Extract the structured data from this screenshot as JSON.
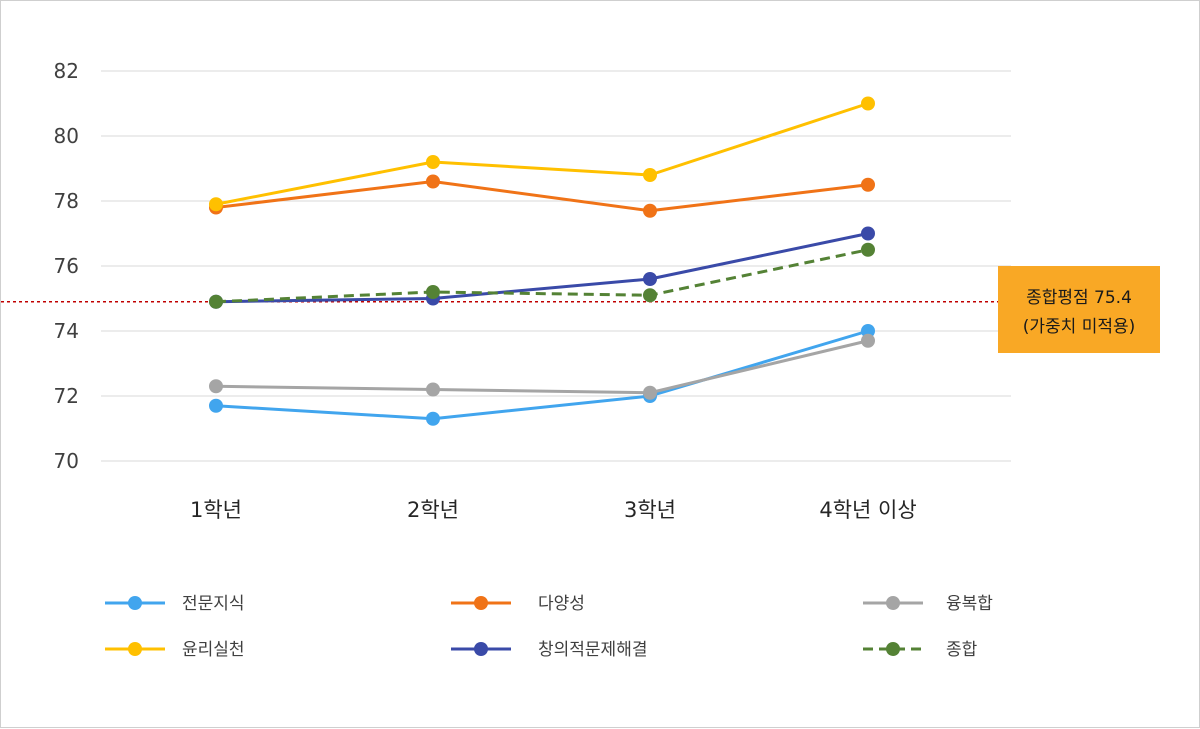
{
  "chart_data": {
    "type": "line",
    "categories": [
      "1학년",
      "2학년",
      "3학년",
      "4학년 이상"
    ],
    "ylim": [
      70,
      82
    ],
    "yticks": [
      "70",
      "72",
      "74",
      "76",
      "78",
      "80",
      "82"
    ],
    "grid": true,
    "legend_position": "bottom",
    "series": [
      {
        "name": "전문지식",
        "color": "#41a5ee",
        "dashed": false,
        "values": [
          71.7,
          71.3,
          72.0,
          74.0
        ]
      },
      {
        "name": "다양성",
        "color": "#f07317",
        "dashed": false,
        "values": [
          77.8,
          78.6,
          77.7,
          78.5
        ]
      },
      {
        "name": "융복합",
        "color": "#a5a5a5",
        "dashed": false,
        "values": [
          72.3,
          72.2,
          72.1,
          73.7
        ]
      },
      {
        "name": "윤리실천",
        "color": "#ffc000",
        "dashed": false,
        "values": [
          77.9,
          79.2,
          78.8,
          81.0
        ]
      },
      {
        "name": "창의적문제해결",
        "color": "#3a4aa8",
        "dashed": false,
        "values": [
          74.9,
          75.0,
          75.6,
          77.0
        ]
      },
      {
        "name": "종합",
        "color": "#548235",
        "dashed": true,
        "values": [
          74.9,
          75.2,
          75.1,
          76.5
        ]
      }
    ],
    "reference_line": {
      "value": 74.9,
      "color": "#c00000"
    },
    "annotation": {
      "line1": "종합평점 75.4",
      "line2": "(가중치 미적용)",
      "color": "#f9a825"
    }
  }
}
